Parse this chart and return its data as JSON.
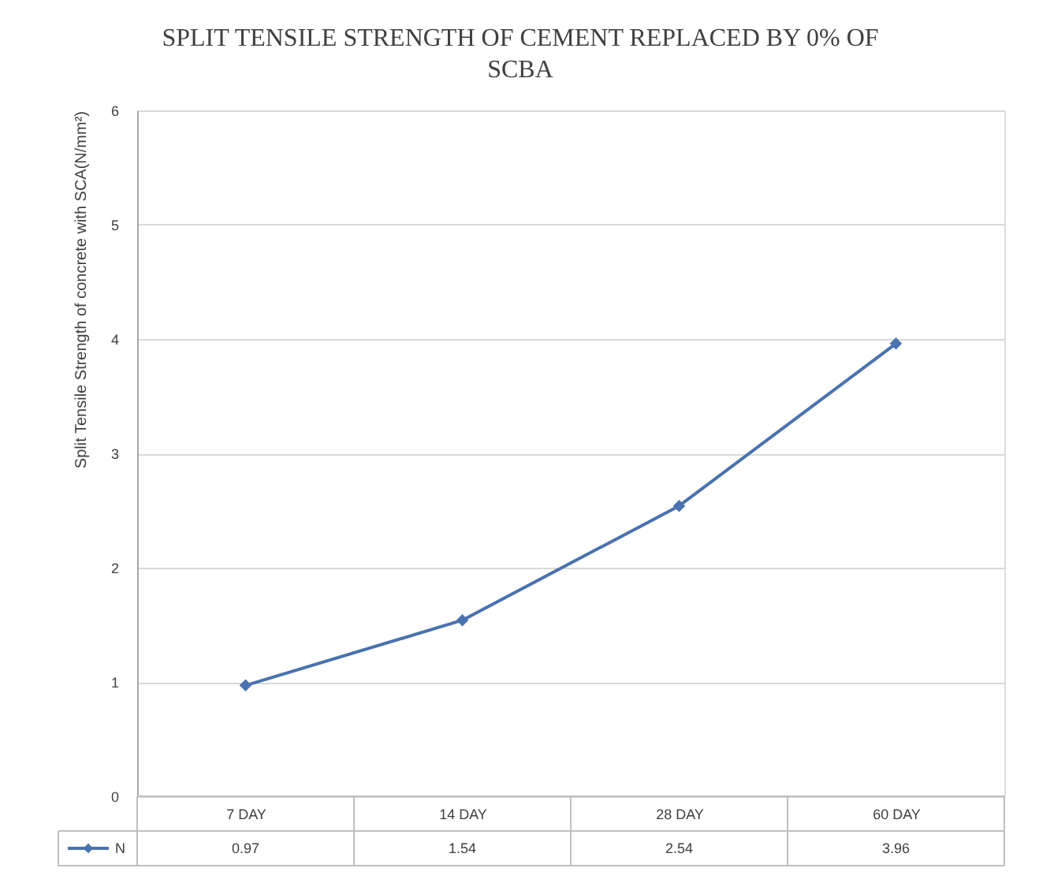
{
  "chart_data": {
    "type": "line",
    "title": "SPLIT TENSILE STRENGTH OF CEMENT REPLACED BY 0% OF SCBA",
    "ylabel": "Split Tensile Strength of concrete with SCA(N/mm²)",
    "categories": [
      "7 DAY",
      "14 DAY",
      "28 DAY",
      "60 DAY"
    ],
    "series": [
      {
        "name": "N",
        "color": "#4a72b0",
        "values": [
          0.97,
          1.54,
          2.54,
          3.96
        ]
      }
    ],
    "ylim": [
      0,
      6
    ],
    "yticks": [
      0,
      1,
      2,
      3,
      4,
      5,
      6
    ],
    "grid": "y",
    "legend": "bottom",
    "marker": "diamond",
    "line_style": "solid",
    "data_labels": true
  }
}
